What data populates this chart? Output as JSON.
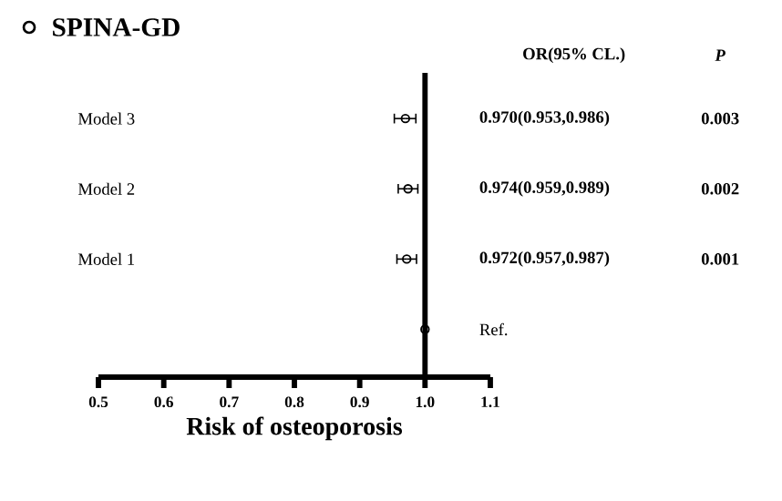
{
  "chart_data": {
    "type": "scatter",
    "orientation": "horizontal",
    "title": "SPINA-GD",
    "xlabel": "Risk of osteoporosis",
    "categories": [
      "Model 3",
      "Model 2",
      "Model 1",
      null
    ],
    "values": [
      0.97,
      0.974,
      0.972,
      1.0
    ],
    "errors": [
      [
        0.953,
        0.986
      ],
      [
        0.959,
        0.989
      ],
      [
        0.957,
        0.987
      ],
      null
    ],
    "color": "#000000",
    "marker": "circle",
    "xlim": [
      0.5,
      1.1
    ],
    "xticks": [
      0.5,
      0.6,
      0.7,
      0.8,
      0.9,
      {
        "value": 1.0,
        "label": "1.0"
      },
      1.1
    ],
    "ref_lines": [
      {
        "axis": "x",
        "value": 1.0
      }
    ],
    "annotations": [
      "OR(95% CL.)",
      "*P*",
      "0.970(0.953,0.986)",
      "0.974(0.959,0.989)",
      "0.972(0.957,0.987)",
      "Ref.",
      "0.003",
      "0.002",
      "0.001"
    ]
  }
}
